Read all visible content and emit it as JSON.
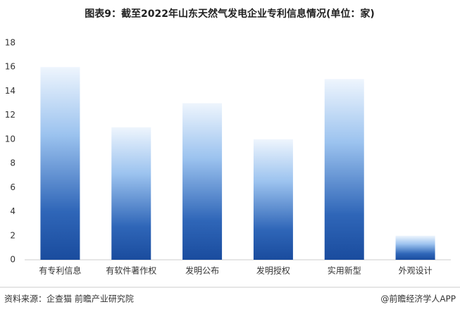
{
  "chart_data": {
    "type": "bar",
    "title": "图表9：截至2022年山东天然气发电企业专利信息情况(单位：家)",
    "categories": [
      "有专利信息",
      "有软件著作权",
      "发明公布",
      "发明授权",
      "实用新型",
      "外观设计"
    ],
    "values": [
      16,
      11,
      13,
      10,
      15,
      2
    ],
    "color": "#1a4c9e",
    "ylim": [
      0,
      18
    ],
    "yticks": [
      0,
      2,
      4,
      6,
      8,
      10,
      12,
      14,
      16,
      18
    ],
    "grid": false,
    "source": "资料来源：企查猫 前瞻产业研究院",
    "credit": "@前瞻经济学人APP"
  }
}
